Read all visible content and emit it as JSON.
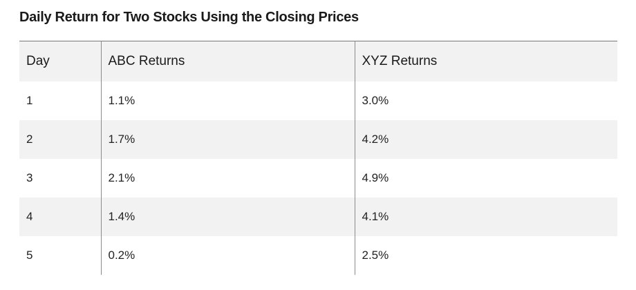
{
  "caption": "Daily Return for Two Stocks Using the Closing Prices",
  "table": {
    "headers": [
      "Day",
      "ABC Returns",
      "XYZ Returns"
    ],
    "rows": [
      [
        "1",
        "1.1%",
        "3.0%"
      ],
      [
        "2",
        "1.7%",
        "4.2%"
      ],
      [
        "3",
        "2.1%",
        "4.9%"
      ],
      [
        "4",
        "1.4%",
        "4.1%"
      ],
      [
        "5",
        "0.2%",
        "2.5%"
      ]
    ]
  },
  "colors": {
    "header_bg": "#f2f2f2",
    "stripe_bg": "#f2f2f2",
    "rule": "#777777"
  }
}
